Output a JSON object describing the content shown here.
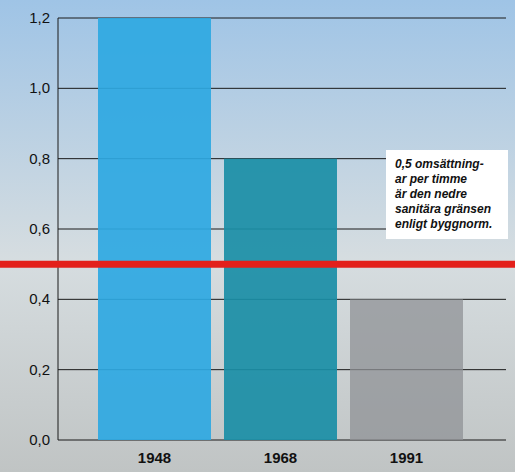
{
  "chart_data": {
    "type": "bar",
    "categories": [
      "1948",
      "1968",
      "1991"
    ],
    "values": [
      1.2,
      0.8,
      0.4
    ],
    "colors": [
      "#2ea8e2",
      "#1a8ea6",
      "#8f9296"
    ],
    "ylim": [
      0,
      1.2
    ],
    "yticks": [
      {
        "value": 0,
        "label": "0,0"
      },
      {
        "value": 0.2,
        "label": "0,2"
      },
      {
        "value": 0.4,
        "label": "0,4"
      },
      {
        "value": 0.6,
        "label": "0,6"
      },
      {
        "value": 0.8,
        "label": "0,8"
      },
      {
        "value": 1.0,
        "label": "1,0"
      },
      {
        "value": 1.2,
        "label": "1,2"
      }
    ],
    "grid": true,
    "reference_line": {
      "value": 0.5,
      "color": "#e3201b",
      "label": [
        "0,5 omsättning-",
        "ar per timme",
        "är den nedre",
        "sanitära gränsen",
        "enligt byggnorm."
      ]
    }
  }
}
